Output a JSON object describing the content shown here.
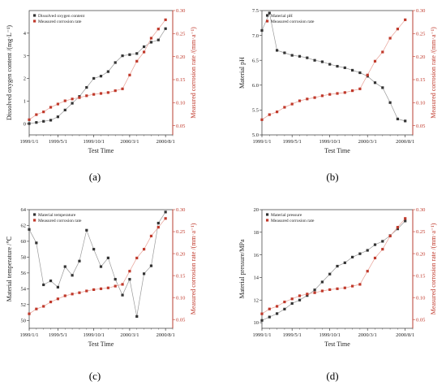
{
  "chart_data": [
    {
      "type": "line",
      "panel_label": "(a)",
      "xlabel": "Test Time",
      "ylabel": "Dissolved oxygen content /(mg·L⁻¹)",
      "y2label": "Measured corrosion rate /(mm·a⁻¹)",
      "xlim": [
        1999.0,
        2000.6667
      ],
      "ylim": [
        -0.5,
        5
      ],
      "yticks": [
        0,
        1,
        2,
        3,
        4
      ],
      "y2lim": [
        0.03,
        0.3
      ],
      "y2ticks": [
        0.05,
        0.1,
        0.15,
        0.2,
        0.25,
        0.3
      ],
      "xticks": [
        {
          "label": "1999/1/1",
          "value": 1999.0
        },
        {
          "label": "1999/5/1",
          "value": 1999.3333
        },
        {
          "label": "1999/10/1",
          "value": 1999.75
        },
        {
          "label": "2000/3/1",
          "value": 2000.1667
        },
        {
          "label": "2000/8/1",
          "value": 2000.5833
        }
      ],
      "legend_position": "top-left",
      "series": [
        {
          "name": "Dissolved oxygen content",
          "axis": "left",
          "color": "#333333",
          "marker": "square",
          "x": [
            1999.0,
            1999.0833,
            1999.1667,
            1999.25,
            1999.3333,
            1999.4167,
            1999.5,
            1999.5833,
            1999.6667,
            1999.75,
            1999.8333,
            1999.9167,
            2000.0,
            2000.0833,
            2000.1667,
            2000.25,
            2000.3333,
            2000.4167,
            2000.5,
            2000.5833
          ],
          "y": [
            0.0,
            0.05,
            0.1,
            0.15,
            0.3,
            0.6,
            0.9,
            1.2,
            1.6,
            2.0,
            2.1,
            2.3,
            2.7,
            3.0,
            3.05,
            3.1,
            3.4,
            3.6,
            3.7,
            4.2
          ]
        },
        {
          "name": "Measured corrosion rate",
          "axis": "right",
          "color": "#c0392b",
          "marker": "square",
          "x": [
            1999.0,
            1999.0833,
            1999.1667,
            1999.25,
            1999.3333,
            1999.4167,
            1999.5,
            1999.5833,
            1999.6667,
            1999.75,
            1999.8333,
            1999.9167,
            2000.0,
            2000.0833,
            2000.1667,
            2000.25,
            2000.3333,
            2000.4167,
            2000.5,
            2000.5833
          ],
          "y": [
            0.063,
            0.074,
            0.08,
            0.09,
            0.097,
            0.104,
            0.108,
            0.111,
            0.115,
            0.118,
            0.12,
            0.122,
            0.126,
            0.13,
            0.16,
            0.19,
            0.21,
            0.24,
            0.26,
            0.28
          ]
        }
      ]
    },
    {
      "type": "line",
      "panel_label": "(b)",
      "xlabel": "Test Time",
      "ylabel": "Material pH",
      "y2label": "Measured corrosion rate /(mm·a⁻¹)",
      "xlim": [
        1999.0,
        2000.6667
      ],
      "ylim": [
        5.0,
        7.5
      ],
      "yticks": [
        5.0,
        5.5,
        6.0,
        6.5,
        7.0,
        7.5
      ],
      "y2lim": [
        0.03,
        0.3
      ],
      "y2ticks": [
        0.05,
        0.1,
        0.15,
        0.2,
        0.25,
        0.3
      ],
      "xticks": [
        {
          "label": "1999/1/1",
          "value": 1999.0
        },
        {
          "label": "1999/5/1",
          "value": 1999.3333
        },
        {
          "label": "1999/10/1",
          "value": 1999.75
        },
        {
          "label": "2000/3/1",
          "value": 2000.1667
        },
        {
          "label": "2000/8/1",
          "value": 2000.5833
        }
      ],
      "legend_position": "top-left",
      "series": [
        {
          "name": "Material pH",
          "axis": "left",
          "color": "#333333",
          "marker": "square",
          "x": [
            1999.0,
            1999.0833,
            1999.1667,
            1999.25,
            1999.3333,
            1999.4167,
            1999.5,
            1999.5833,
            1999.6667,
            1999.75,
            1999.8333,
            1999.9167,
            2000.0,
            2000.0833,
            2000.1667,
            2000.25,
            2000.3333,
            2000.4167,
            2000.5,
            2000.5833
          ],
          "y": [
            7.1,
            7.45,
            6.7,
            6.65,
            6.6,
            6.58,
            6.55,
            6.5,
            6.47,
            6.42,
            6.38,
            6.35,
            6.3,
            6.25,
            6.18,
            6.05,
            5.95,
            5.65,
            5.32,
            5.28
          ]
        },
        {
          "name": "Measured corrosion rate",
          "axis": "right",
          "color": "#c0392b",
          "marker": "square",
          "x": [
            1999.0,
            1999.0833,
            1999.1667,
            1999.25,
            1999.3333,
            1999.4167,
            1999.5,
            1999.5833,
            1999.6667,
            1999.75,
            1999.8333,
            1999.9167,
            2000.0,
            2000.0833,
            2000.1667,
            2000.25,
            2000.3333,
            2000.4167,
            2000.5,
            2000.5833
          ],
          "y": [
            0.063,
            0.074,
            0.08,
            0.09,
            0.097,
            0.104,
            0.108,
            0.111,
            0.115,
            0.118,
            0.12,
            0.122,
            0.126,
            0.13,
            0.16,
            0.19,
            0.21,
            0.24,
            0.26,
            0.28
          ]
        }
      ]
    },
    {
      "type": "line",
      "panel_label": "(c)",
      "xlabel": "Test Time",
      "ylabel": "Material temperature /℃",
      "y2label": "Measured corrosion rate /(mm·a⁻¹)",
      "xlim": [
        1999.0,
        2000.6667
      ],
      "ylim": [
        49,
        64
      ],
      "yticks": [
        50,
        52,
        54,
        56,
        58,
        60,
        62,
        64
      ],
      "y2lim": [
        0.03,
        0.3
      ],
      "y2ticks": [
        0.05,
        0.1,
        0.15,
        0.2,
        0.25,
        0.3
      ],
      "xticks": [
        {
          "label": "1999/1/1",
          "value": 1999.0
        },
        {
          "label": "1999/5/1",
          "value": 1999.3333
        },
        {
          "label": "1999/10/1",
          "value": 1999.75
        },
        {
          "label": "2000/3/1",
          "value": 2000.1667
        },
        {
          "label": "2000/8/1",
          "value": 2000.5833
        }
      ],
      "legend_position": "top-left",
      "series": [
        {
          "name": "Material temperature",
          "axis": "left",
          "color": "#333333",
          "marker": "square",
          "x": [
            1999.0,
            1999.0833,
            1999.1667,
            1999.25,
            1999.3333,
            1999.4167,
            1999.5,
            1999.5833,
            1999.6667,
            1999.75,
            1999.8333,
            1999.9167,
            2000.0,
            2000.0833,
            2000.1667,
            2000.25,
            2000.3333,
            2000.4167,
            2000.5,
            2000.5833
          ],
          "y": [
            61.5,
            59.8,
            54.5,
            55.0,
            54.2,
            56.8,
            55.7,
            57.5,
            61.4,
            59.0,
            56.8,
            57.9,
            55.2,
            53.2,
            55.2,
            50.5,
            55.9,
            56.9,
            62.3,
            63.7
          ]
        },
        {
          "name": "Measured corrosion rate",
          "axis": "right",
          "color": "#c0392b",
          "marker": "square",
          "x": [
            1999.0,
            1999.0833,
            1999.1667,
            1999.25,
            1999.3333,
            1999.4167,
            1999.5,
            1999.5833,
            1999.6667,
            1999.75,
            1999.8333,
            1999.9167,
            2000.0,
            2000.0833,
            2000.1667,
            2000.25,
            2000.3333,
            2000.4167,
            2000.5,
            2000.5833
          ],
          "y": [
            0.063,
            0.074,
            0.08,
            0.09,
            0.097,
            0.104,
            0.108,
            0.111,
            0.115,
            0.118,
            0.12,
            0.122,
            0.126,
            0.13,
            0.16,
            0.19,
            0.21,
            0.24,
            0.26,
            0.28
          ]
        }
      ]
    },
    {
      "type": "line",
      "panel_label": "(d)",
      "xlabel": "Test Time",
      "ylabel": "Material pressure/MPa",
      "y2label": "Measured corrosion rate /(mm·a⁻¹)",
      "xlim": [
        1999.0,
        2000.6667
      ],
      "ylim": [
        9.5,
        20
      ],
      "yticks": [
        10,
        12,
        14,
        16,
        18,
        20
      ],
      "y2lim": [
        0.03,
        0.3
      ],
      "y2ticks": [
        0.05,
        0.1,
        0.15,
        0.2,
        0.25,
        0.3
      ],
      "xticks": [
        {
          "label": "1999/1/1",
          "value": 1999.0
        },
        {
          "label": "1999/5/1",
          "value": 1999.3333
        },
        {
          "label": "1999/10/1",
          "value": 1999.75
        },
        {
          "label": "2000/3/1",
          "value": 2000.1667
        },
        {
          "label": "2000/8/1",
          "value": 2000.5833
        }
      ],
      "legend_position": "top-left",
      "series": [
        {
          "name": "Material pressure",
          "axis": "left",
          "color": "#333333",
          "marker": "square",
          "x": [
            1999.0,
            1999.0833,
            1999.1667,
            1999.25,
            1999.3333,
            1999.4167,
            1999.5,
            1999.5833,
            1999.6667,
            1999.75,
            1999.8333,
            1999.9167,
            2000.0,
            2000.0833,
            2000.1667,
            2000.25,
            2000.3333,
            2000.4167,
            2000.5,
            2000.5833
          ],
          "y": [
            10.2,
            10.5,
            10.8,
            11.2,
            11.7,
            12.0,
            12.4,
            12.9,
            13.6,
            14.3,
            15.0,
            15.3,
            15.8,
            16.1,
            16.4,
            16.9,
            17.2,
            17.7,
            18.3,
            19.0
          ]
        },
        {
          "name": "Measured corrosion rate",
          "axis": "right",
          "color": "#c0392b",
          "marker": "square",
          "x": [
            1999.0,
            1999.0833,
            1999.1667,
            1999.25,
            1999.3333,
            1999.4167,
            1999.5,
            1999.5833,
            1999.6667,
            1999.75,
            1999.8333,
            1999.9167,
            2000.0,
            2000.0833,
            2000.1667,
            2000.25,
            2000.3333,
            2000.4167,
            2000.5,
            2000.5833
          ],
          "y": [
            0.063,
            0.074,
            0.08,
            0.09,
            0.097,
            0.104,
            0.108,
            0.111,
            0.115,
            0.118,
            0.12,
            0.122,
            0.126,
            0.13,
            0.16,
            0.19,
            0.21,
            0.24,
            0.26,
            0.28
          ]
        }
      ]
    }
  ]
}
